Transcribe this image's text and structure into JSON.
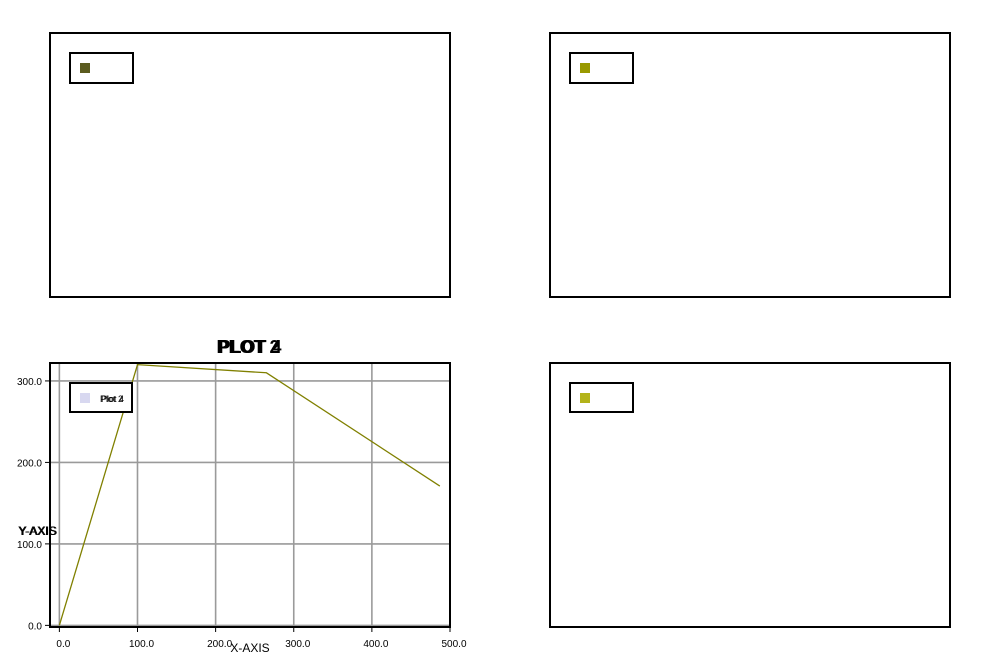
{
  "chart_data": [
    {
      "panel": "top-left",
      "type": "line",
      "title": "",
      "xlabel": "",
      "ylabel": "",
      "legend": [
        {
          "name": "",
          "color": "#5b5b1f"
        }
      ],
      "legend_position": "top-left",
      "series": []
    },
    {
      "panel": "top-right",
      "type": "line",
      "title": "",
      "xlabel": "",
      "ylabel": "",
      "legend": [
        {
          "name": "",
          "color": "#999900"
        }
      ],
      "legend_position": "top-left",
      "series": []
    },
    {
      "panel": "bottom-left",
      "type": "line",
      "title": "PLOT 2",
      "title_overlap": "PLOT 4",
      "xlabel": "X-AXIS",
      "ylabel": "Y-AXIS",
      "ylabel_overlap": "Y-AXIS",
      "xlim": [
        -12,
        500
      ],
      "ylim": [
        -2,
        322
      ],
      "x_ticks": [
        "0.0",
        "100.0",
        "200.0",
        "300.0",
        "400.0",
        "500.0"
      ],
      "x_tick_values": [
        0,
        100,
        200,
        300,
        400,
        500
      ],
      "y_ticks": [
        "0.0",
        "100.0",
        "200.0",
        "300.0"
      ],
      "y_tick_values": [
        0,
        100,
        200,
        300
      ],
      "grid": true,
      "legend": [
        {
          "name": "Plot 2",
          "color": "#d8d8f0"
        }
      ],
      "legend_overlap": "Plot 4",
      "legend_position": "top-left",
      "series": [
        {
          "name": "",
          "color": "#808000",
          "x": [
            0,
            100,
            265,
            487
          ],
          "y": [
            0,
            320,
            310,
            171
          ]
        }
      ]
    },
    {
      "panel": "bottom-right",
      "type": "line",
      "title": "",
      "xlabel": "",
      "ylabel": "",
      "legend": [
        {
          "name": "",
          "color": "#b3b31a"
        }
      ],
      "legend_position": "top-left",
      "series": []
    }
  ]
}
